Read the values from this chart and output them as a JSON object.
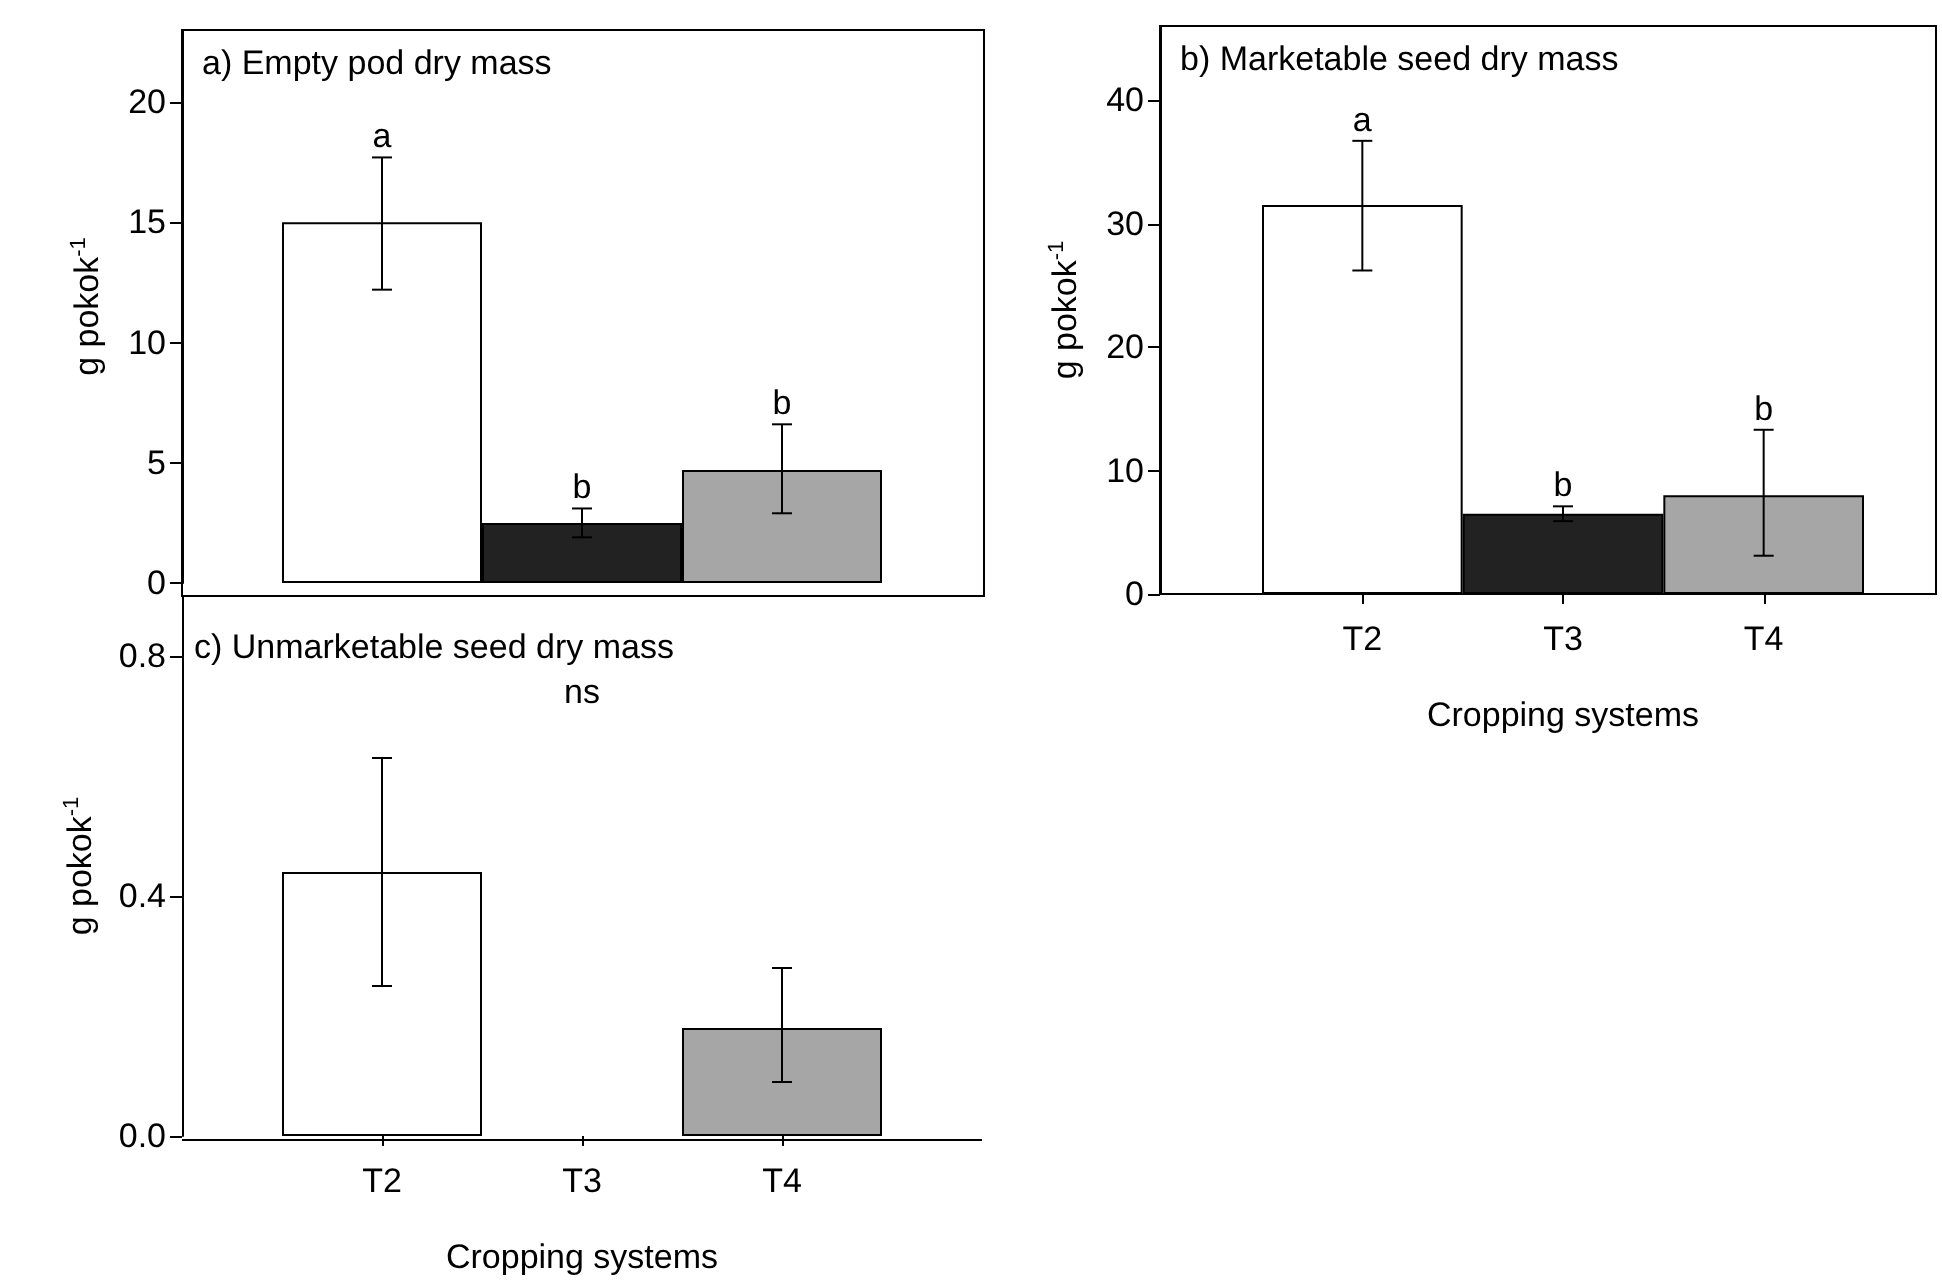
{
  "chart_data": [
    {
      "type": "bar",
      "title": "a) Empty pod dry mass",
      "ylabel": "g pokok$^{-1}$",
      "categories": [
        "T2",
        "T3",
        "T4"
      ],
      "values": [
        15.0,
        2.5,
        4.7
      ],
      "colors": [
        "#ffffff",
        "#222222",
        "#a6a6a6"
      ],
      "errors": [
        [
          12.2,
          17.7
        ],
        0.6,
        [
          2.9,
          6.6
        ]
      ],
      "ylim": [
        0,
        23
      ],
      "yticks": [
        0,
        5,
        10,
        15,
        20
      ],
      "tick_labels": "y",
      "annotations": [
        {
          "text": "a",
          "x": "T2",
          "y": 17.7
        },
        {
          "text": "b",
          "x": "T3",
          "y": 3.1
        },
        {
          "text": "b",
          "x": "T4",
          "y": 6.6
        }
      ]
    },
    {
      "type": "bar",
      "title": "b) Marketable seed dry mass",
      "ylabel": "g pokok$^{-1}$",
      "xlabel": "Cropping systems",
      "categories": [
        "T2",
        "T3",
        "T4"
      ],
      "values": [
        31.5,
        6.5,
        8.0
      ],
      "colors": [
        "#ffffff",
        "#222222",
        "#a6a6a6"
      ],
      "errors": [
        [
          26.2,
          36.7
        ],
        0.6,
        [
          3.1,
          13.3
        ]
      ],
      "ylim": [
        0,
        46
      ],
      "yticks": [
        0,
        10,
        20,
        30,
        40
      ],
      "annotations": [
        {
          "text": "a",
          "x": "T2",
          "y": 36.7
        },
        {
          "text": "b",
          "x": "T3",
          "y": 7.1
        },
        {
          "text": "b",
          "x": "T4",
          "y": 13.3
        }
      ]
    },
    {
      "type": "bar",
      "title": "c) Unmarketable seed dry mass",
      "ylabel": "g pokok$^{-1}$",
      "xlabel": "Cropping systems",
      "categories": [
        "T2",
        "T3",
        "T4"
      ],
      "values": [
        0.44,
        0,
        0.18
      ],
      "colors": [
        "#ffffff",
        "#222222",
        "#a6a6a6"
      ],
      "errors": [
        [
          0.25,
          0.63
        ],
        null,
        [
          0.09,
          0.28
        ]
      ],
      "ylim": [
        0,
        0.9
      ],
      "yticks": [
        {
          "value": 0,
          "label": "0.0"
        },
        0.4,
        0.8
      ],
      "annotations": [
        "ns"
      ]
    }
  ]
}
